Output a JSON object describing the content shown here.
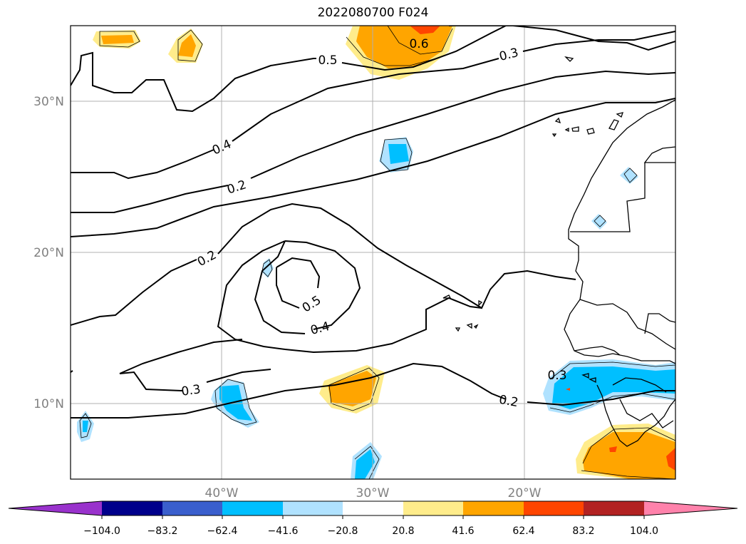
{
  "title": "2022080700 F024",
  "map": {
    "lat_labels": [
      "30°N",
      "20°N",
      "10°N"
    ],
    "lon_labels": [
      "40°W",
      "30°W",
      "20°W"
    ],
    "contour_labels": [
      "0.5",
      "0.6",
      "0.3",
      "0.4",
      "0.2",
      "0.2",
      "0.5",
      "0.4",
      "0.3",
      "0.2",
      "0.3"
    ]
  },
  "colorbar": {
    "ticks": [
      "−104.0",
      "−83.2",
      "−62.4",
      "−41.6",
      "−20.8",
      "20.8",
      "41.6",
      "62.4",
      "83.2",
      "104.0"
    ],
    "colors": [
      "#9932cc",
      "#00008b",
      "#3a5fcd",
      "#00bfff",
      "#b0e2ff",
      "#ffffff",
      "#ffec8b",
      "#ffa500",
      "#ff4500",
      "#b22222",
      "#ff82ab"
    ]
  },
  "colors": {
    "light_blue": "#b0e2ff",
    "blue": "#00bfff",
    "light_yellow": "#ffec8b",
    "orange": "#ffa500",
    "red_orange": "#ff4500",
    "grid": "#b0b0b0"
  }
}
